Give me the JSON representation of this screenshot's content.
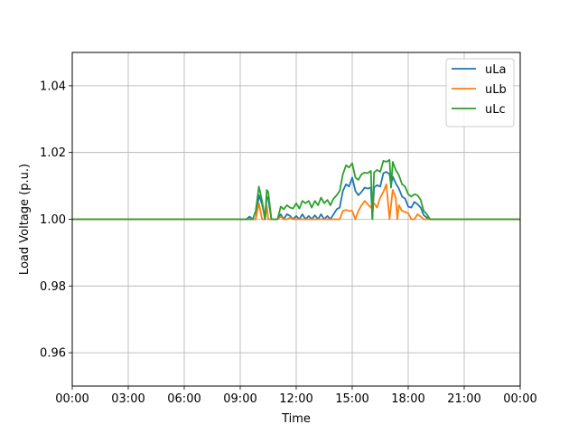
{
  "chart_data": {
    "type": "line",
    "title": "",
    "xlabel": "Time",
    "ylabel": "Load Voltage (p.u.)",
    "xlim": [
      0,
      24
    ],
    "ylim": [
      0.95,
      1.05
    ],
    "x_ticks": [
      0,
      3,
      6,
      9,
      12,
      15,
      18,
      21,
      24
    ],
    "x_tick_labels": [
      "00:00",
      "03:00",
      "06:00",
      "09:00",
      "12:00",
      "15:00",
      "18:00",
      "21:00",
      "00:00"
    ],
    "y_ticks": [
      0.96,
      0.98,
      1.0,
      1.02,
      1.04
    ],
    "y_tick_labels": [
      "0.96",
      "0.98",
      "1.00",
      "1.02",
      "1.04"
    ],
    "grid": true,
    "legend_position": "top-right",
    "series": [
      {
        "name": "uLa",
        "color": "#1f77b4",
        "points": [
          [
            0,
            1.0
          ],
          [
            9.33,
            1.0
          ],
          [
            9.5,
            1.0008
          ],
          [
            9.67,
            1.0
          ],
          [
            9.83,
            1.0
          ],
          [
            10.0,
            1.0072
          ],
          [
            10.17,
            1.0045
          ],
          [
            10.33,
            1.0
          ],
          [
            10.42,
            1.0068
          ],
          [
            10.5,
            1.0062
          ],
          [
            10.67,
            1.0
          ],
          [
            11.0,
            1.0
          ],
          [
            11.17,
            1.0015
          ],
          [
            11.33,
            1.0
          ],
          [
            11.5,
            1.0015
          ],
          [
            11.67,
            1.001
          ],
          [
            11.83,
            1.0
          ],
          [
            12.0,
            1.001
          ],
          [
            12.17,
            1.0
          ],
          [
            12.33,
            1.0015
          ],
          [
            12.5,
            1.0
          ],
          [
            12.67,
            1.001
          ],
          [
            12.83,
            1.0
          ],
          [
            13.0,
            1.0012
          ],
          [
            13.17,
            1.0
          ],
          [
            13.33,
            1.0015
          ],
          [
            13.5,
            1.0
          ],
          [
            13.67,
            1.001
          ],
          [
            13.83,
            1.0
          ],
          [
            14.0,
            1.0015
          ],
          [
            14.17,
            1.003
          ],
          [
            14.33,
            1.0035
          ],
          [
            14.5,
            1.0085
          ],
          [
            14.67,
            1.0105
          ],
          [
            14.83,
            1.0098
          ],
          [
            15.0,
            1.0125
          ],
          [
            15.17,
            1.0085
          ],
          [
            15.33,
            1.0072
          ],
          [
            15.5,
            1.0082
          ],
          [
            15.67,
            1.0095
          ],
          [
            15.83,
            1.0092
          ],
          [
            16.0,
            1.0095
          ],
          [
            16.08,
            1.0
          ],
          [
            16.17,
            1.0095
          ],
          [
            16.33,
            1.0102
          ],
          [
            16.5,
            1.0098
          ],
          [
            16.67,
            1.0138
          ],
          [
            16.83,
            1.0142
          ],
          [
            17.0,
            1.0135
          ],
          [
            17.08,
            1.0102
          ],
          [
            17.17,
            1.0128
          ],
          [
            17.33,
            1.0108
          ],
          [
            17.5,
            1.0092
          ],
          [
            17.67,
            1.0068
          ],
          [
            17.83,
            1.0062
          ],
          [
            18.0,
            1.0038
          ],
          [
            18.17,
            1.0035
          ],
          [
            18.33,
            1.0052
          ],
          [
            18.5,
            1.0045
          ],
          [
            18.67,
            1.0035
          ],
          [
            18.83,
            1.0012
          ],
          [
            19.0,
            1.0005
          ],
          [
            19.17,
            1.0
          ],
          [
            24,
            1.0
          ]
        ]
      },
      {
        "name": "uLb",
        "color": "#ff7f0e",
        "points": [
          [
            0,
            1.0
          ],
          [
            9.83,
            1.0
          ],
          [
            10.0,
            1.0048
          ],
          [
            10.17,
            1.0
          ],
          [
            10.33,
            1.0
          ],
          [
            10.42,
            1.0042
          ],
          [
            10.5,
            1.0
          ],
          [
            11.0,
            1.0
          ],
          [
            11.17,
            1.0008
          ],
          [
            11.33,
            1.0
          ],
          [
            11.5,
            1.0
          ],
          [
            11.67,
            1.0005
          ],
          [
            11.83,
            1.0
          ],
          [
            14.33,
            1.0
          ],
          [
            14.5,
            1.0025
          ],
          [
            14.67,
            1.0028
          ],
          [
            14.83,
            1.0025
          ],
          [
            15.0,
            1.0025
          ],
          [
            15.17,
            1.0
          ],
          [
            15.33,
            1.0025
          ],
          [
            15.5,
            1.0042
          ],
          [
            15.67,
            1.0055
          ],
          [
            15.83,
            1.0045
          ],
          [
            16.0,
            1.0035
          ],
          [
            16.17,
            1.0048
          ],
          [
            16.33,
            1.0035
          ],
          [
            16.5,
            1.0065
          ],
          [
            16.67,
            1.0082
          ],
          [
            16.83,
            1.0105
          ],
          [
            17.0,
            1.0
          ],
          [
            17.17,
            1.0088
          ],
          [
            17.33,
            1.0065
          ],
          [
            17.42,
            1.0
          ],
          [
            17.5,
            1.0042
          ],
          [
            17.67,
            1.0025
          ],
          [
            17.83,
            1.0022
          ],
          [
            18.0,
            1.0018
          ],
          [
            18.17,
            1.0
          ],
          [
            18.33,
            1.0
          ],
          [
            18.5,
            1.0015
          ],
          [
            18.67,
            1.0008
          ],
          [
            18.83,
            1.0
          ],
          [
            24,
            1.0
          ]
        ]
      },
      {
        "name": "uLc",
        "color": "#2ca02c",
        "points": [
          [
            0,
            1.0
          ],
          [
            9.67,
            1.0
          ],
          [
            9.83,
            1.0025
          ],
          [
            10.0,
            1.0098
          ],
          [
            10.17,
            1.0055
          ],
          [
            10.33,
            1.0
          ],
          [
            10.42,
            1.0088
          ],
          [
            10.5,
            1.0082
          ],
          [
            10.67,
            1.0
          ],
          [
            10.83,
            1.0
          ],
          [
            11.0,
            1.0
          ],
          [
            11.17,
            1.0038
          ],
          [
            11.33,
            1.003
          ],
          [
            11.5,
            1.0042
          ],
          [
            11.67,
            1.0035
          ],
          [
            11.83,
            1.0032
          ],
          [
            12.0,
            1.0048
          ],
          [
            12.17,
            1.0032
          ],
          [
            12.33,
            1.0055
          ],
          [
            12.5,
            1.0048
          ],
          [
            12.67,
            1.0055
          ],
          [
            12.83,
            1.0035
          ],
          [
            13.0,
            1.0055
          ],
          [
            13.17,
            1.0042
          ],
          [
            13.33,
            1.0065
          ],
          [
            13.5,
            1.0048
          ],
          [
            13.67,
            1.0058
          ],
          [
            13.83,
            1.0042
          ],
          [
            14.0,
            1.0062
          ],
          [
            14.17,
            1.0072
          ],
          [
            14.33,
            1.0085
          ],
          [
            14.5,
            1.0135
          ],
          [
            14.67,
            1.0162
          ],
          [
            14.83,
            1.0155
          ],
          [
            15.0,
            1.0168
          ],
          [
            15.17,
            1.0125
          ],
          [
            15.33,
            1.0118
          ],
          [
            15.5,
            1.0135
          ],
          [
            15.67,
            1.014
          ],
          [
            15.83,
            1.0138
          ],
          [
            16.0,
            1.0145
          ],
          [
            16.08,
            1.0
          ],
          [
            16.17,
            1.014
          ],
          [
            16.33,
            1.0148
          ],
          [
            16.5,
            1.0142
          ],
          [
            16.67,
            1.0175
          ],
          [
            16.83,
            1.0172
          ],
          [
            17.0,
            1.0178
          ],
          [
            17.08,
            1.0095
          ],
          [
            17.17,
            1.0172
          ],
          [
            17.33,
            1.0148
          ],
          [
            17.5,
            1.0132
          ],
          [
            17.67,
            1.0105
          ],
          [
            17.83,
            1.0098
          ],
          [
            18.0,
            1.0075
          ],
          [
            18.17,
            1.0068
          ],
          [
            18.33,
            1.0075
          ],
          [
            18.5,
            1.0072
          ],
          [
            18.67,
            1.0058
          ],
          [
            18.83,
            1.0025
          ],
          [
            19.0,
            1.0015
          ],
          [
            19.17,
            1.0
          ],
          [
            24,
            1.0
          ]
        ]
      }
    ]
  }
}
